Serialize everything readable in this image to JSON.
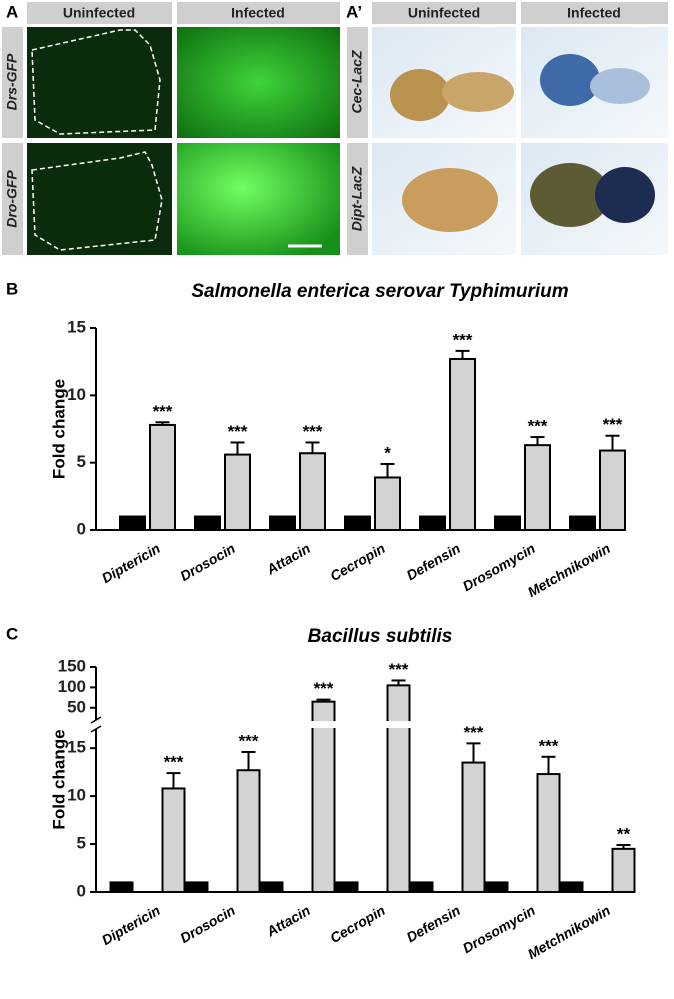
{
  "figure": {
    "panel_A": {
      "label": "A",
      "columns": [
        "Uninfected",
        "Infected"
      ],
      "rows": [
        "Drs-GFP",
        "Dro-GFP"
      ]
    },
    "panel_A_prime": {
      "label": "A’",
      "columns": [
        "Uninfected",
        "Infected"
      ],
      "rows": [
        "Cec-LacZ",
        "Dipt-LacZ"
      ]
    }
  },
  "chart_data": [
    {
      "type": "bar",
      "panel_label": "B",
      "title": "Salmonella enterica serovar Typhimurium",
      "y_label": "Fold change",
      "categories": [
        "Diptericin",
        "Drosocin",
        "Attacin",
        "Cecropin",
        "Defensin",
        "Drosomycin",
        "Metchnikowin"
      ],
      "series": [
        {
          "color": "#000000",
          "values": [
            1,
            1,
            1,
            1,
            1,
            1,
            1
          ]
        },
        {
          "color": "#d3d3d3",
          "values": [
            7.8,
            5.6,
            5.7,
            3.9,
            12.7,
            6.3,
            5.9
          ],
          "errors": [
            0.2,
            0.9,
            0.8,
            1.0,
            0.6,
            0.6,
            1.1
          ]
        }
      ],
      "annotations": [
        "***",
        "***",
        "***",
        "*",
        "***",
        "***",
        "***"
      ],
      "ylim": [
        0,
        15
      ],
      "yticks": [
        0,
        5,
        10,
        15
      ]
    },
    {
      "type": "bar",
      "panel_label": "C",
      "title": "Bacillus subtilis",
      "y_label": "Fold change",
      "categories": [
        "Diptericin",
        "Drosocin",
        "Attacin",
        "Cecropin",
        "Defensin",
        "Drosomycin",
        "Metchnikowin"
      ],
      "series": [
        {
          "color": "#000000",
          "values": [
            1,
            1,
            1,
            1,
            1,
            1,
            1
          ]
        },
        {
          "color": "#d3d3d3",
          "values": [
            10.8,
            12.7,
            65,
            105,
            13.5,
            12.3,
            4.5
          ],
          "errors": [
            1.6,
            1.9,
            5,
            12,
            2,
            1.8,
            0.4
          ]
        }
      ],
      "annotations": [
        "***",
        "***",
        "***",
        "***",
        "***",
        "***",
        "**"
      ],
      "ylim": [
        0,
        150
      ],
      "axis_break": [
        17,
        20
      ],
      "yticks": [
        0,
        5,
        10,
        15,
        50,
        100,
        150
      ]
    }
  ]
}
